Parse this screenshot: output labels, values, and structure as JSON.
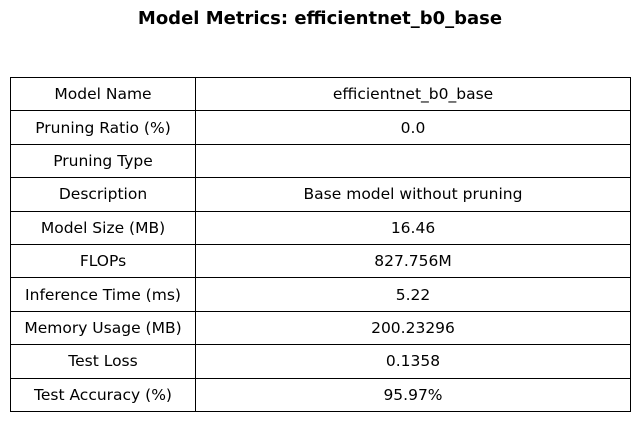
{
  "chart_data": {
    "type": "table",
    "title": "Model Metrics: efficientnet_b0_base",
    "rows": [
      {
        "label": "Model Name",
        "value": "efficientnet_b0_base"
      },
      {
        "label": "Pruning Ratio (%)",
        "value": "0.0"
      },
      {
        "label": "Pruning Type",
        "value": ""
      },
      {
        "label": "Description",
        "value": "Base model without pruning"
      },
      {
        "label": "Model Size (MB)",
        "value": "16.46"
      },
      {
        "label": "FLOPs",
        "value": "827.756M"
      },
      {
        "label": "Inference Time (ms)",
        "value": "5.22"
      },
      {
        "label": "Memory Usage (MB)",
        "value": "200.23296"
      },
      {
        "label": "Test Loss",
        "value": "0.1358"
      },
      {
        "label": "Test Accuracy (%)",
        "value": "95.97%"
      }
    ]
  }
}
